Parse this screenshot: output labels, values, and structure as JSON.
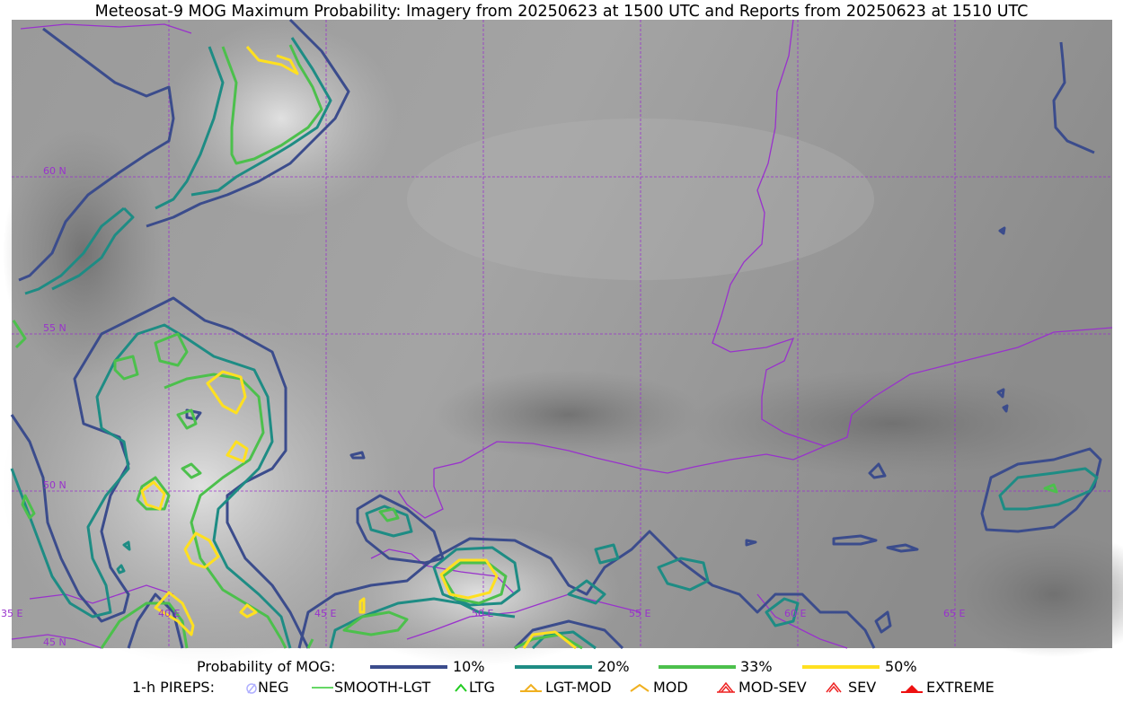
{
  "title": "Meteosat-9 MOG Maximum Probability: Imagery from 20250623 at 1500 UTC and Reports from 20250623 at 1510 UTC",
  "map": {
    "lat_labels": [
      "60 N",
      "55 N",
      "50 N",
      "45 N"
    ],
    "lon_labels": [
      "35 E",
      "40 E",
      "45 E",
      "50 E",
      "55 E",
      "60 E",
      "65 E"
    ],
    "graticule_color": "#9932cc",
    "border_color": "#9932cc",
    "contour_colors": {
      "p10": "#3b4c8c",
      "p20": "#1e8c84",
      "p33": "#4cc04c",
      "p50": "#ffe020"
    }
  },
  "legend": {
    "probability_label": "Probability of MOG:",
    "probability_items": [
      {
        "label": "10%",
        "color": "#3b4c8c"
      },
      {
        "label": "20%",
        "color": "#1e8c84"
      },
      {
        "label": "33%",
        "color": "#4cc04c"
      },
      {
        "label": "50%",
        "color": "#ffe020"
      }
    ],
    "pireps_label": "1-h PIREPS:",
    "pireps_items": [
      {
        "label": "NEG",
        "color": "#b0b0ff",
        "icon": "circle-slash-icon"
      },
      {
        "label": "SMOOTH-LGT",
        "color": "#33cc33",
        "icon": "dash-icon"
      },
      {
        "label": "LTG",
        "color": "#22cc22",
        "icon": "caret-icon"
      },
      {
        "label": "LGT-MOD",
        "color": "#f0b020",
        "icon": "caret-bar-icon"
      },
      {
        "label": "MOD",
        "color": "#f0b020",
        "icon": "caret-icon"
      },
      {
        "label": "MOD-SEV",
        "color": "#ee2222",
        "icon": "double-caret-icon"
      },
      {
        "label": "SEV",
        "color": "#ee2222",
        "icon": "double-caret-icon"
      },
      {
        "label": "EXTREME",
        "color": "#ee1111",
        "icon": "filled-caret-icon"
      }
    ]
  }
}
